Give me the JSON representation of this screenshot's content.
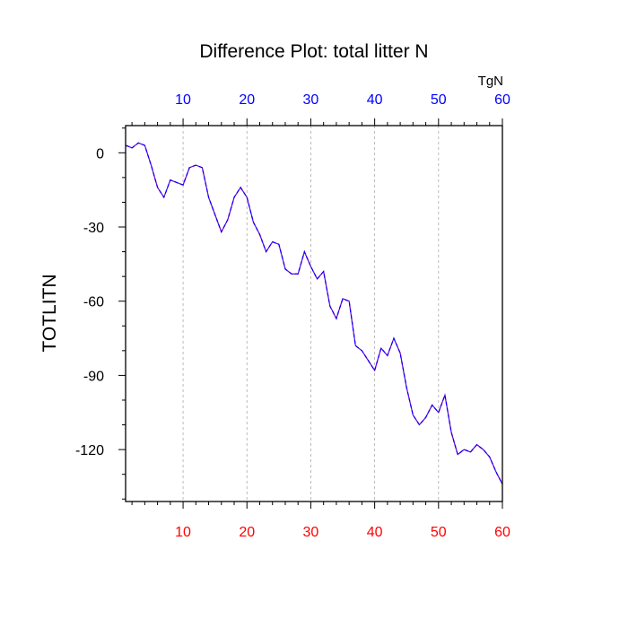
{
  "chart_data": {
    "type": "line",
    "title": "Difference Plot: total litter N",
    "ylabel": "TOTLITN",
    "units_label": "TgN",
    "xlim": [
      1,
      60
    ],
    "ylim": [
      -141,
      11
    ],
    "x_ticks": [
      10,
      20,
      30,
      40,
      50,
      60
    ],
    "y_ticks": [
      0,
      -30,
      -60,
      -90,
      -120
    ],
    "x_tick_labels": [
      "10",
      "20",
      "30",
      "40",
      "50",
      "60"
    ],
    "y_tick_labels": [
      "0",
      "-30",
      "-60",
      "-90",
      "-120"
    ],
    "grid": "vertical-dashed",
    "series": [
      {
        "line_color": "#7a00c8",
        "dash_color": "#0000ff",
        "x": [
          1,
          2,
          3,
          4,
          5,
          6,
          7,
          8,
          9,
          10,
          11,
          12,
          13,
          14,
          15,
          16,
          17,
          18,
          19,
          20,
          21,
          22,
          23,
          24,
          25,
          26,
          27,
          28,
          29,
          30,
          31,
          32,
          33,
          34,
          35,
          36,
          37,
          38,
          39,
          40,
          41,
          42,
          43,
          44,
          45,
          46,
          47,
          48,
          49,
          50,
          51,
          52,
          53,
          54,
          55,
          56,
          57,
          58,
          59,
          60
        ],
        "values": [
          3,
          2,
          4,
          3,
          -5,
          -14,
          -18,
          -11,
          -12,
          -13,
          -6,
          -5,
          -6,
          -18,
          -25,
          -32,
          -27,
          -18,
          -14,
          -18,
          -28,
          -33,
          -40,
          -36,
          -37,
          -47,
          -49,
          -49,
          -40,
          -46,
          -51,
          -48,
          -62,
          -67,
          -59,
          -60,
          -78,
          -80,
          -84,
          -88,
          -79,
          -82,
          -75,
          -81,
          -95,
          -106,
          -110,
          -107,
          -102,
          -105,
          -98,
          -113,
          -122,
          -120,
          -121,
          -118,
          -120,
          -123,
          -129,
          -134
        ]
      }
    ],
    "colors": {
      "bottom_tick_labels": "#ff0000",
      "top_tick_labels": "#0000ff",
      "text": "#000000",
      "grid": "#aaaaaa"
    }
  }
}
